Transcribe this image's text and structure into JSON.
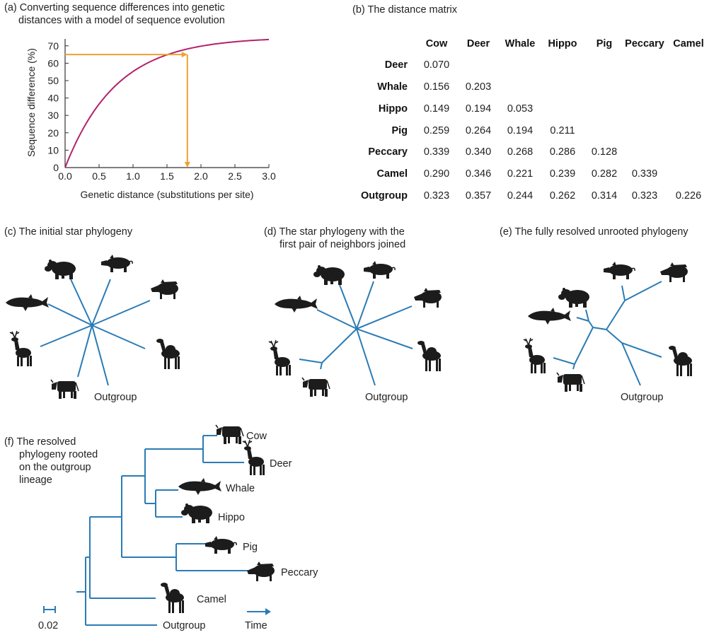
{
  "panel_a": {
    "title_line1": "(a) Converting sequence differences into genetic",
    "title_line2": "distances with a model of sequence evolution",
    "ylabel": "Sequence difference (%)",
    "xlabel": "Genetic distance (substitutions per site)",
    "xticks": [
      "0.0",
      "0.5",
      "1.0",
      "1.5",
      "2.0",
      "2.5",
      "3.0"
    ],
    "yticks": [
      "0",
      "10",
      "20",
      "30",
      "40",
      "50",
      "60",
      "70"
    ],
    "chart_data": {
      "type": "line",
      "xlim": [
        0,
        3
      ],
      "ylim": [
        0,
        75
      ],
      "curve_asymptote": 75,
      "curve_rate": 1.333,
      "marker_x": 1.8,
      "marker_y": 65,
      "curve_color": "#b3226a",
      "marker_color": "#f0a032"
    }
  },
  "panel_b": {
    "title": "(b) The distance matrix",
    "columns": [
      "Cow",
      "Deer",
      "Whale",
      "Hippo",
      "Pig",
      "Peccary",
      "Camel"
    ],
    "rows": [
      {
        "name": "Deer",
        "values": [
          "0.070"
        ]
      },
      {
        "name": "Whale",
        "values": [
          "0.156",
          "0.203"
        ]
      },
      {
        "name": "Hippo",
        "values": [
          "0.149",
          "0.194",
          "0.053"
        ]
      },
      {
        "name": "Pig",
        "values": [
          "0.259",
          "0.264",
          "0.194",
          "0.211"
        ]
      },
      {
        "name": "Peccary",
        "values": [
          "0.339",
          "0.340",
          "0.268",
          "0.286",
          "0.128"
        ]
      },
      {
        "name": "Camel",
        "values": [
          "0.290",
          "0.346",
          "0.221",
          "0.239",
          "0.282",
          "0.339"
        ]
      },
      {
        "name": "Outgroup",
        "values": [
          "0.323",
          "0.357",
          "0.244",
          "0.262",
          "0.314",
          "0.323",
          "0.226"
        ]
      }
    ]
  },
  "panel_c": {
    "title": "(c) The initial star phylogeny",
    "outgroup_label": "Outgroup"
  },
  "panel_d": {
    "title_line1": "(d) The star phylogeny with the",
    "title_line2": "first pair of neighbors joined",
    "outgroup_label": "Outgroup"
  },
  "panel_e": {
    "title": "(e) The fully resolved unrooted phylogeny",
    "outgroup_label": "Outgroup"
  },
  "panel_f": {
    "title_lines": [
      "(f) The resolved",
      "phylogeny rooted",
      "on the outgroup",
      "lineage"
    ],
    "taxa": [
      "Cow",
      "Deer",
      "Whale",
      "Hippo",
      "Pig",
      "Peccary",
      "Camel",
      "Outgroup"
    ],
    "scale_label": "0.02",
    "time_label": "Time"
  },
  "colors": {
    "branch": "#2b7bb4",
    "curve": "#b3226a",
    "marker": "#f0a032",
    "animal": "#1c1c1c"
  }
}
